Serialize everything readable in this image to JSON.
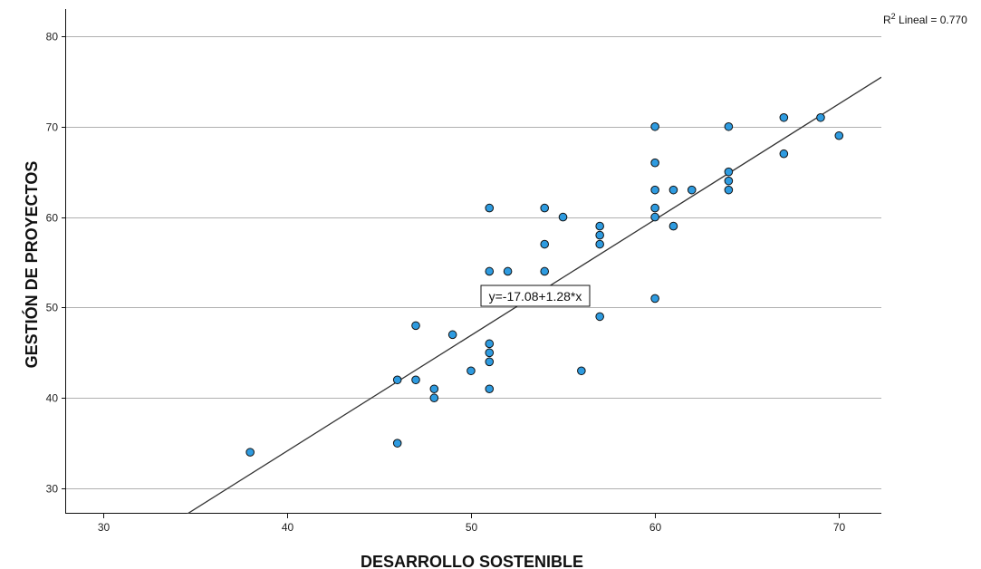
{
  "chart_data": {
    "type": "scatter",
    "xlabel": "DESARROLLO SOSTENIBLE",
    "ylabel": "GESTIÓN DE PROYECTOS",
    "xlim": [
      28,
      72.3
    ],
    "ylim": [
      27.2,
      83
    ],
    "x_ticks": [
      30,
      40,
      50,
      60,
      70
    ],
    "y_ticks": [
      30,
      40,
      50,
      60,
      70,
      80
    ],
    "grid": "horizontal",
    "points": [
      [
        38,
        34
      ],
      [
        46,
        35
      ],
      [
        46,
        42
      ],
      [
        47,
        42
      ],
      [
        47,
        48
      ],
      [
        48,
        41
      ],
      [
        48,
        40
      ],
      [
        49,
        47
      ],
      [
        50,
        43
      ],
      [
        51,
        61
      ],
      [
        51,
        54
      ],
      [
        51,
        46
      ],
      [
        51,
        45
      ],
      [
        51,
        44
      ],
      [
        51,
        41
      ],
      [
        52,
        54
      ],
      [
        54,
        61
      ],
      [
        54,
        57
      ],
      [
        54,
        54
      ],
      [
        55,
        60
      ],
      [
        56,
        43
      ],
      [
        57,
        59
      ],
      [
        57,
        58
      ],
      [
        57,
        57
      ],
      [
        57,
        49
      ],
      [
        60,
        70
      ],
      [
        60,
        66
      ],
      [
        60,
        63
      ],
      [
        60,
        61
      ],
      [
        60,
        60
      ],
      [
        60,
        51
      ],
      [
        61,
        63
      ],
      [
        61,
        59
      ],
      [
        62,
        63
      ],
      [
        64,
        70
      ],
      [
        64,
        65
      ],
      [
        64,
        64
      ],
      [
        64,
        63
      ],
      [
        67,
        71
      ],
      [
        67,
        67
      ],
      [
        69,
        71
      ],
      [
        70,
        69
      ]
    ],
    "fit_line": {
      "intercept": -17.08,
      "slope": 1.28
    },
    "equation_label": "y=-17.08+1.28*x",
    "r2_label": {
      "r": "R",
      "sup": "2",
      "text": " Lineal = 0.770"
    },
    "marker_color": "#2e9be0",
    "marker_edge": "#111111",
    "line_color": "#333333",
    "grid_color": "#b0b0b0"
  }
}
